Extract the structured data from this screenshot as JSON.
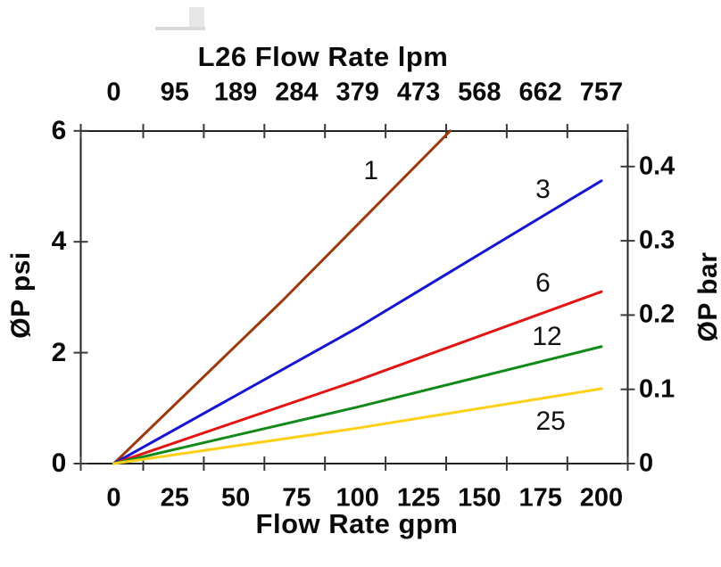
{
  "chart_data": {
    "type": "line",
    "title": "L26 Flow Rate lpm",
    "grid": "off",
    "legend": "inline-curve-labels",
    "axes": {
      "top": {
        "title": "L26 Flow Rate lpm",
        "unit": "lpm",
        "tick_labels": [
          "0",
          "95",
          "189",
          "284",
          "379",
          "473",
          "568",
          "662",
          "757"
        ]
      },
      "bottom": {
        "title": "Flow Rate gpm",
        "unit": "gpm",
        "tick_labels": [
          "0",
          "25",
          "50",
          "75",
          "100",
          "125",
          "150",
          "175",
          "200"
        ],
        "tick_values": [
          0,
          25,
          50,
          75,
          100,
          125,
          150,
          175,
          200
        ],
        "range": [
          0,
          200
        ]
      },
      "left": {
        "title": "ØP psi",
        "unit": "psi",
        "tick_labels": [
          "0",
          "2",
          "4",
          "6"
        ],
        "tick_values": [
          0,
          2,
          4,
          6
        ],
        "range": [
          0,
          6
        ]
      },
      "right": {
        "title": "ØP bar",
        "unit": "bar",
        "tick_labels": [
          "0",
          "0.1",
          "0.2",
          "0.3",
          "0.4"
        ],
        "tick_values": [
          0,
          0.1,
          0.2,
          0.3,
          0.4
        ],
        "range": [
          0,
          0.45
        ]
      }
    },
    "series": [
      {
        "label": "1",
        "color": "#9c3a0e",
        "points_gpm_psi": [
          [
            0,
            0
          ],
          [
            69,
            2.93
          ],
          [
            138,
            6.0
          ]
        ],
        "label_at_gpm_psi": [
          105.5,
          5.27
        ]
      },
      {
        "label": "3",
        "color": "#1515d2",
        "points_gpm_psi": [
          [
            0,
            0
          ],
          [
            100,
            2.45
          ],
          [
            200,
            5.1
          ]
        ],
        "label_at_gpm_psi": [
          176,
          4.93
        ]
      },
      {
        "label": "6",
        "color": "#e51414",
        "points_gpm_psi": [
          [
            0,
            0
          ],
          [
            100,
            1.5
          ],
          [
            200,
            3.1
          ]
        ],
        "label_at_gpm_psi": [
          176,
          3.25
        ]
      },
      {
        "label": "12",
        "color": "#13891c",
        "points_gpm_psi": [
          [
            0,
            0
          ],
          [
            100,
            1.02
          ],
          [
            200,
            2.11
          ]
        ],
        "label_at_gpm_psi": [
          177.7,
          2.28
        ]
      },
      {
        "label": "25",
        "color": "#fdd017",
        "points_gpm_psi": [
          [
            0,
            0
          ],
          [
            100,
            0.64
          ],
          [
            200,
            1.35
          ]
        ],
        "label_at_gpm_psi": [
          179.2,
          0.75
        ]
      }
    ]
  }
}
